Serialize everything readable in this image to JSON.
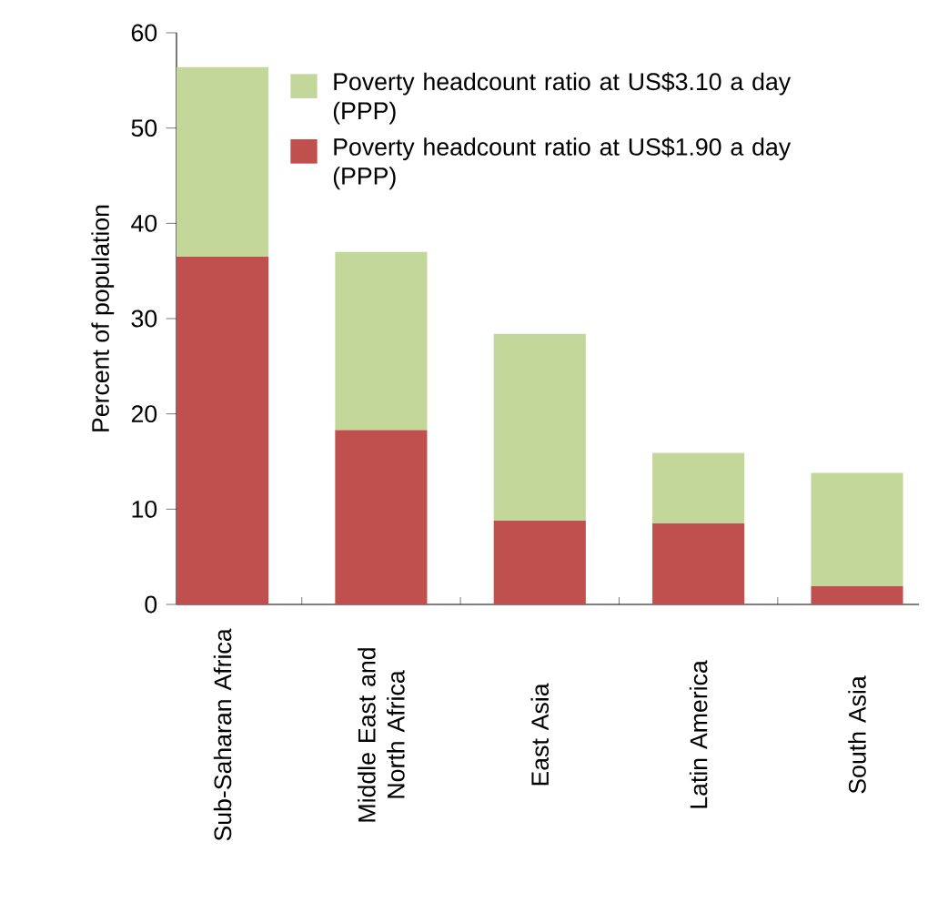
{
  "chart_data": {
    "type": "bar",
    "stacked": true,
    "categories": [
      "Sub-Saharan Africa",
      "Middle East and North Africa",
      "East Asia",
      "Latin America",
      "South Asia"
    ],
    "ylabel": "Percent of population",
    "ylim": [
      0,
      60
    ],
    "yticks": [
      0,
      10,
      20,
      30,
      40,
      50,
      60
    ],
    "legend": "top right",
    "grid": false,
    "series": [
      {
        "name": "Poverty headcount ratio at US$1.90 a day (PPP)",
        "color": "#c0504d",
        "values": [
          36.5,
          18.3,
          8.8,
          8.5,
          1.9
        ]
      },
      {
        "name": "Poverty headcount ratio at US$3.10 a day (PPP)",
        "color": "#c4d79b",
        "values": [
          19.9,
          18.7,
          19.6,
          7.4,
          11.9
        ]
      }
    ]
  }
}
